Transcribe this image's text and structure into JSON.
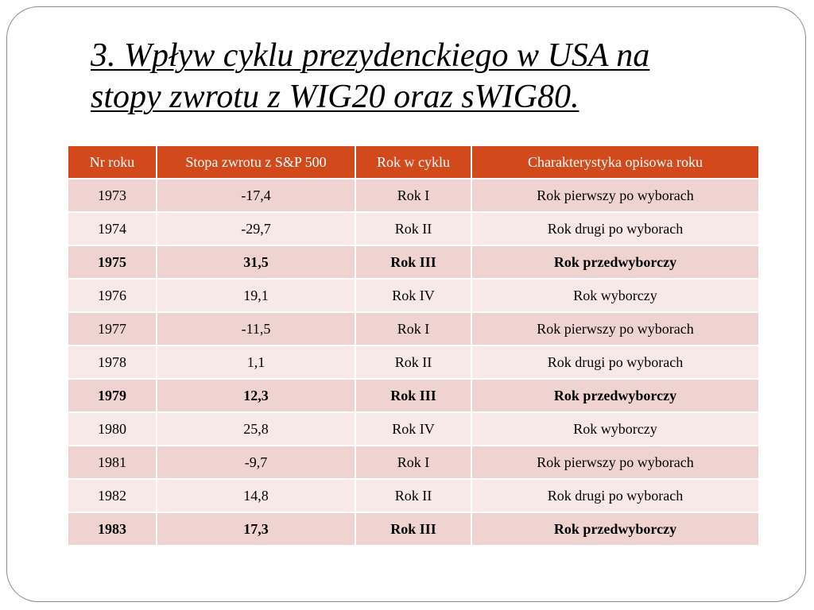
{
  "slide": {
    "title_line1": "3. Wpływ cyklu prezydenckiego w USA na",
    "title_line2": "stopy zwrotu z WIG20 oraz sWIG80."
  },
  "table": {
    "headers": [
      "Nr roku",
      "Stopa zwrotu z S&P 500",
      "Rok w cyklu",
      "Charakterystyka opisowa roku"
    ],
    "rows": [
      {
        "year": "1973",
        "return": "-17,4",
        "cycle": "Rok I",
        "description": "Rok pierwszy po wyborach",
        "bold": false
      },
      {
        "year": "1974",
        "return": "-29,7",
        "cycle": "Rok II",
        "description": "Rok drugi po wyborach",
        "bold": false
      },
      {
        "year": "1975",
        "return": "31,5",
        "cycle": "Rok III",
        "description": "Rok przedwyborczy",
        "bold": true
      },
      {
        "year": "1976",
        "return": "19,1",
        "cycle": "Rok IV",
        "description": "Rok wyborczy",
        "bold": false
      },
      {
        "year": "1977",
        "return": "-11,5",
        "cycle": "Rok I",
        "description": "Rok pierwszy po wyborach",
        "bold": false
      },
      {
        "year": "1978",
        "return": "1,1",
        "cycle": "Rok II",
        "description": "Rok drugi po wyborach",
        "bold": false
      },
      {
        "year": "1979",
        "return": "12,3",
        "cycle": "Rok III",
        "description": "Rok przedwyborczy",
        "bold": true
      },
      {
        "year": "1980",
        "return": "25,8",
        "cycle": "Rok IV",
        "description": "Rok wyborczy",
        "bold": false
      },
      {
        "year": "1981",
        "return": "-9,7",
        "cycle": "Rok I",
        "description": "Rok pierwszy po wyborach",
        "bold": false
      },
      {
        "year": "1982",
        "return": "14,8",
        "cycle": "Rok II",
        "description": "Rok drugi po wyborach",
        "bold": false
      },
      {
        "year": "1983",
        "return": "17,3",
        "cycle": "Rok III",
        "description": "Rok przedwyborczy",
        "bold": true
      }
    ]
  },
  "colors": {
    "header_bg": "#d24a1c",
    "row_odd_bg": "#efd3d0",
    "row_even_bg": "#f7e9e8"
  }
}
